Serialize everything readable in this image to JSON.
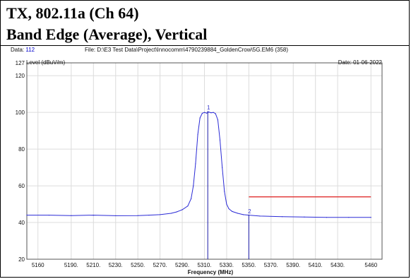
{
  "header": {
    "title_line1": "TX, 802.11a (Ch 64)",
    "title_line2": "Band Edge (Average), Vertical"
  },
  "meta": {
    "data_label": "Data:",
    "data_value": "112",
    "file_text": "File: D:\\E3 Test Data\\Project\\Innocomm\\4790239884_GoldenCrow\\5G.EM6  (358)",
    "date_text": "Date: 01-06-2022"
  },
  "chart_data": {
    "type": "line",
    "title": "",
    "xlabel": "Frequency (MHz)",
    "ylabel": "Level (dBuV/m)",
    "xlim": [
      5150,
      5470
    ],
    "ylim": [
      20,
      127
    ],
    "x_ticks": [
      5160,
      5190,
      5210,
      5230,
      5250,
      5270,
      5290,
      5310,
      5330,
      5350,
      5370,
      5390,
      5410,
      5430,
      5460
    ],
    "x_tick_labels": [
      "5160",
      "5190.",
      "5210.",
      "5230.",
      "5250.",
      "5270.",
      "5290.",
      "5310.",
      "5330.",
      "5350.",
      "5370.",
      "5390.",
      "5410.",
      "5430.",
      "5460"
    ],
    "y_ticks": [
      20,
      40,
      60,
      80,
      100,
      120,
      127
    ],
    "y_tick_labels": [
      "20",
      "40",
      "60",
      "80",
      "100",
      "120",
      "127"
    ],
    "grid": true,
    "series": [
      {
        "color": "#2b2bd6",
        "x": [
          5150,
          5170,
          5190,
          5210,
          5230,
          5250,
          5260,
          5270,
          5280,
          5285,
          5290,
          5295,
          5298,
          5300,
          5302,
          5304,
          5306,
          5308,
          5310,
          5312,
          5314,
          5316,
          5318,
          5320,
          5322,
          5324,
          5326,
          5328,
          5330,
          5332,
          5335,
          5340,
          5345,
          5350,
          5360,
          5380,
          5400,
          5420,
          5440,
          5460
        ],
        "y": [
          44,
          44,
          43.8,
          44,
          43.7,
          43.8,
          44,
          44.3,
          45,
          45.8,
          47,
          49,
          53,
          60,
          72,
          88,
          97,
          99.5,
          100,
          99.6,
          100.2,
          99.8,
          100,
          99.3,
          96,
          85,
          70,
          57,
          50,
          47.5,
          46,
          45,
          44.3,
          44,
          43.5,
          43.2,
          43,
          42.8,
          42.8,
          42.8
        ]
      }
    ],
    "limit_line": {
      "color": "#e03030",
      "x": [
        5350,
        5460
      ],
      "y": [
        54,
        54
      ]
    },
    "markers": [
      {
        "label": "1",
        "x": 5313,
        "y": 100
      },
      {
        "label": "2",
        "x": 5350,
        "y": 43.5
      }
    ]
  }
}
